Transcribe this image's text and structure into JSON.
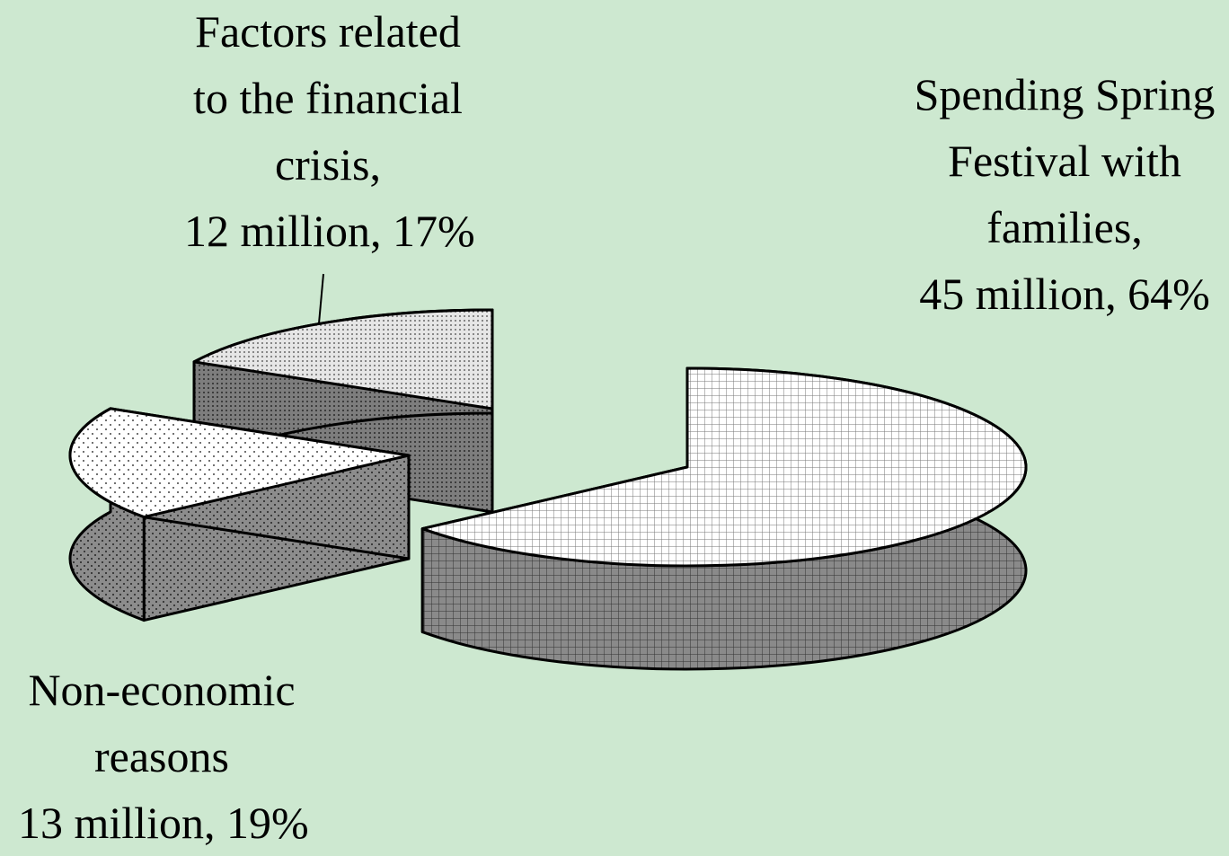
{
  "chart_data": {
    "type": "pie",
    "categories": [
      "Spending Spring Festival with families,",
      "Non-economic reasons",
      "Factors related to the financial crisis,"
    ],
    "values": [
      45,
      13,
      12
    ],
    "value_labels": [
      "45 million, 64%",
      "13 million, 19%",
      "12 million, 17%"
    ]
  }
}
